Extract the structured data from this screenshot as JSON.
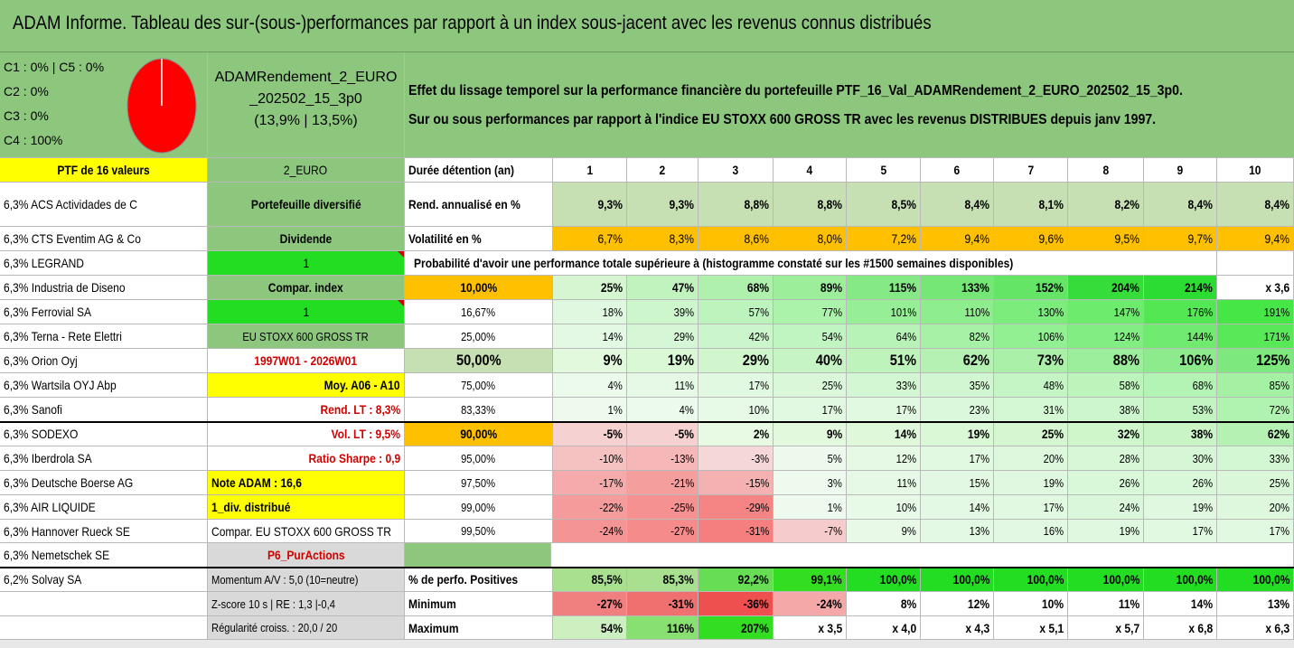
{
  "title": "ADAM Informe. Tableau des sur-(sous-)performances par rapport à un index sous-jacent avec les revenus connus distribués",
  "legend": {
    "lines": [
      "C1 : 0% | C5 : 0%",
      "C2 : 0%",
      "C3 : 0%",
      "C4 : 100%"
    ],
    "pie_color": "#ff0000"
  },
  "portfolio_name": {
    "line1": "ADAMRendement_2_EURO",
    "line2": "_202502_15_3p0",
    "line3": "(13,9% | 13,5%)"
  },
  "description": {
    "line1": "Effet du lissage temporel sur la performance financière du portefeuille PTF_16_Val_ADAMRendement_2_EURO_202502_15_3p0.",
    "line2": "Sur ou sous performances par rapport à l'indice EU STOXX 600 GROSS TR avec les revenus DISTRIBUES depuis janv 1997."
  },
  "holdings_header": "PTF de 16 valeurs",
  "holdings": [
    "6,3% ACS Actividades de C",
    "6,3% CTS Eventim AG & Co",
    "6,3% LEGRAND",
    "6,3% Industria de Diseno",
    "6,3% Ferrovial SA",
    "6,3% Terna - Rete Elettri",
    "6,3% Orion Oyj",
    "6,3% Wartsila OYJ Abp",
    "6,3% Sanofi",
    "6,3% SODEXO",
    "6,3% Iberdrola SA",
    "6,3% Deutsche Boerse AG",
    "6,3% AIR LIQUIDE",
    "6,3% Hannover Rueck SE",
    "6,3% Nemetschek SE",
    "6,2% Solvay SA",
    ""
  ],
  "info_column": [
    "2_EURO",
    "Portefeuille diversifié",
    "Dividende",
    "1",
    "Compar. index",
    "1",
    "EU STOXX 600 GROSS TR",
    "1997W01 - 2026W01",
    "Moy. A06 - A10",
    "Rend. LT : 8,3%",
    "Vol. LT : 9,5%",
    "Ratio Sharpe : 0,9",
    "Note ADAM : 16,6",
    "1_div. distribué",
    "Compar. EU STOXX 600 GROSS TR",
    "P6_PurActions",
    "Momentum A/V : 5,0 (10=neutre)",
    "Z-score 10 s | RE : 1,3 |-0,4",
    "Régularité croiss. : 20,0 / 20"
  ],
  "table": {
    "duration_label": "Durée détention (an)",
    "years": [
      "1",
      "2",
      "3",
      "4",
      "5",
      "6",
      "7",
      "8",
      "9",
      "10"
    ],
    "rend_label": "Rend. annualisé en %",
    "rend": [
      "9,3%",
      "9,3%",
      "8,8%",
      "8,8%",
      "8,5%",
      "8,4%",
      "8,1%",
      "8,2%",
      "8,4%",
      "8,4%"
    ],
    "vol_label": "Volatilité en %",
    "vol": [
      "6,7%",
      "8,3%",
      "8,6%",
      "8,0%",
      "7,2%",
      "9,4%",
      "9,6%",
      "9,5%",
      "9,7%",
      "9,4%"
    ],
    "prob_title": "Probabilité d'avoir une performance totale supérieure à (histogramme constaté sur les #1500 semaines disponibles)",
    "prob_rows": [
      {
        "label": "10,00%",
        "values": [
          "25%",
          "47%",
          "68%",
          "89%",
          "115%",
          "133%",
          "152%",
          "204%",
          "214%",
          "x 3,6"
        ]
      },
      {
        "label": "16,67%",
        "values": [
          "18%",
          "39%",
          "57%",
          "77%",
          "101%",
          "110%",
          "130%",
          "147%",
          "176%",
          "191%"
        ]
      },
      {
        "label": "25,00%",
        "values": [
          "14%",
          "29%",
          "42%",
          "54%",
          "64%",
          "82%",
          "106%",
          "124%",
          "144%",
          "171%"
        ]
      },
      {
        "label": "50,00%",
        "values": [
          "9%",
          "19%",
          "29%",
          "40%",
          "51%",
          "62%",
          "73%",
          "88%",
          "106%",
          "125%"
        ]
      },
      {
        "label": "75,00%",
        "values": [
          "4%",
          "11%",
          "17%",
          "25%",
          "33%",
          "35%",
          "48%",
          "58%",
          "68%",
          "85%"
        ]
      },
      {
        "label": "83,33%",
        "values": [
          "1%",
          "4%",
          "10%",
          "17%",
          "17%",
          "23%",
          "31%",
          "38%",
          "53%",
          "72%"
        ]
      },
      {
        "label": "90,00%",
        "values": [
          "-5%",
          "-5%",
          "2%",
          "9%",
          "14%",
          "19%",
          "25%",
          "32%",
          "38%",
          "62%"
        ]
      },
      {
        "label": "95,00%",
        "values": [
          "-10%",
          "-13%",
          "-3%",
          "5%",
          "12%",
          "17%",
          "20%",
          "28%",
          "30%",
          "33%"
        ]
      },
      {
        "label": "97,50%",
        "values": [
          "-17%",
          "-21%",
          "-15%",
          "3%",
          "11%",
          "15%",
          "19%",
          "26%",
          "26%",
          "25%"
        ]
      },
      {
        "label": "99,00%",
        "values": [
          "-22%",
          "-25%",
          "-29%",
          "1%",
          "10%",
          "14%",
          "17%",
          "24%",
          "19%",
          "20%"
        ]
      },
      {
        "label": "99,50%",
        "values": [
          "-24%",
          "-27%",
          "-31%",
          "-7%",
          "9%",
          "13%",
          "16%",
          "19%",
          "17%",
          "17%"
        ]
      }
    ],
    "pos_label": "% de perfo. Positives",
    "pos": [
      "85,5%",
      "85,3%",
      "92,2%",
      "99,1%",
      "100,0%",
      "100,0%",
      "100,0%",
      "100,0%",
      "100,0%",
      "100,0%"
    ],
    "min_label": "Minimum",
    "min": [
      "-27%",
      "-31%",
      "-36%",
      "-24%",
      "8%",
      "12%",
      "10%",
      "11%",
      "14%",
      "13%"
    ],
    "max_label": "Maximum",
    "max": [
      "54%",
      "116%",
      "207%",
      "x 3,5",
      "x 4,0",
      "x 4,3",
      "x 5,1",
      "x 5,7",
      "x 6,8",
      "x 6,3"
    ]
  },
  "colors": {
    "header_green": "#8dc77e",
    "yellow": "#ffff00",
    "bright_green": "#22dd22",
    "orange": "#ffc000",
    "light_olive": "#c6dfb3"
  }
}
